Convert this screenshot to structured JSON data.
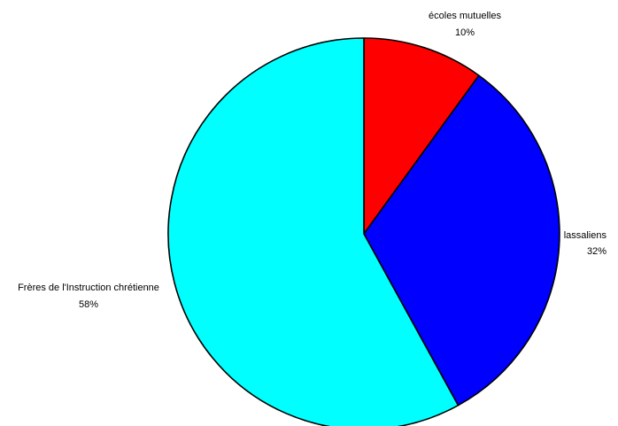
{
  "chart_data": {
    "type": "pie",
    "start_angle_deg": 0,
    "direction": "clockwise",
    "slices": [
      {
        "label": "écoles mutuelles",
        "value": 10,
        "percent_label": "10%",
        "color": "#ff0000"
      },
      {
        "label": "lassaliens",
        "value": 32,
        "percent_label": "32%",
        "color": "#0000ff"
      },
      {
        "label": "Frères de l'Instruction chrétienne",
        "value": 58,
        "percent_label": "58%",
        "color": "#00ffff"
      }
    ],
    "edge_color": "#000000",
    "legend": "none"
  }
}
